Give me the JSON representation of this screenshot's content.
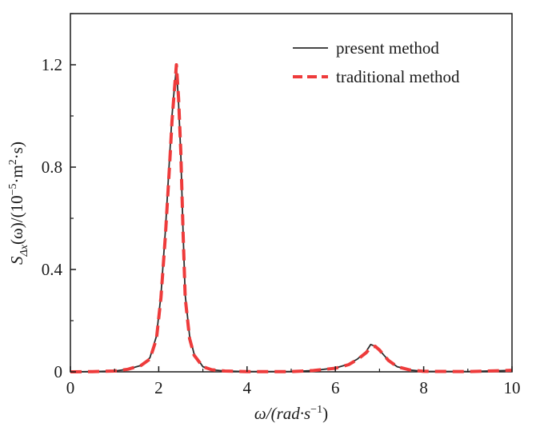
{
  "chart_data": {
    "type": "line",
    "title": "",
    "xlabel": {
      "text": "ω/(rad·s",
      "sup": "−1",
      "close": ")"
    },
    "ylabel": {
      "main": "S",
      "sub": "Δx",
      "arg": "(ω)/(10",
      "sup1": "−5",
      "mid": "·m",
      "sup2": "2",
      "tail": "·s)"
    },
    "xlim": [
      0,
      10
    ],
    "ylim": [
      0,
      1.4
    ],
    "xticks": [
      "0",
      "2",
      "4",
      "6",
      "8",
      "10"
    ],
    "yticks": [
      "0",
      "0.4",
      "0.8",
      "1.2"
    ],
    "legend_position": "top-right",
    "grid": false,
    "colors": {
      "present": "#2b2b2b",
      "traditional": "#ee3b3b"
    },
    "series": [
      {
        "name": "present method",
        "x": [
          0,
          0.5,
          1.0,
          1.3,
          1.6,
          1.8,
          1.95,
          2.05,
          2.15,
          2.25,
          2.3,
          2.35,
          2.4,
          2.45,
          2.5,
          2.55,
          2.6,
          2.7,
          2.8,
          3.0,
          3.2,
          3.5,
          4.0,
          5.0,
          5.5,
          6.0,
          6.3,
          6.5,
          6.7,
          6.8,
          6.9,
          7.0,
          7.2,
          7.4,
          7.7,
          8.0,
          9.0,
          10.0
        ],
        "y": [
          0,
          0.001,
          0.003,
          0.01,
          0.025,
          0.055,
          0.14,
          0.3,
          0.55,
          0.85,
          1.0,
          1.1,
          1.19,
          1.05,
          0.85,
          0.55,
          0.3,
          0.14,
          0.07,
          0.02,
          0.008,
          0.003,
          0.001,
          0.001,
          0.005,
          0.015,
          0.03,
          0.05,
          0.08,
          0.107,
          0.1,
          0.085,
          0.045,
          0.02,
          0.007,
          0.002,
          0.001,
          0.006
        ]
      },
      {
        "name": "traditional method",
        "x": [
          0,
          0.5,
          1.0,
          1.3,
          1.6,
          1.8,
          1.95,
          2.05,
          2.15,
          2.25,
          2.3,
          2.35,
          2.4,
          2.45,
          2.5,
          2.55,
          2.6,
          2.7,
          2.8,
          3.0,
          3.2,
          3.5,
          4.0,
          5.0,
          5.5,
          6.0,
          6.3,
          6.5,
          6.7,
          6.8,
          6.9,
          7.0,
          7.2,
          7.4,
          7.7,
          8.0,
          9.0,
          10.0
        ],
        "y": [
          0,
          0.001,
          0.003,
          0.01,
          0.025,
          0.05,
          0.13,
          0.29,
          0.53,
          0.82,
          0.98,
          1.09,
          1.2,
          1.07,
          0.86,
          0.55,
          0.29,
          0.13,
          0.065,
          0.02,
          0.008,
          0.003,
          0.001,
          0.001,
          0.005,
          0.014,
          0.028,
          0.048,
          0.075,
          0.095,
          0.1,
          0.085,
          0.045,
          0.02,
          0.007,
          0.002,
          0.001,
          0.006
        ]
      }
    ]
  }
}
